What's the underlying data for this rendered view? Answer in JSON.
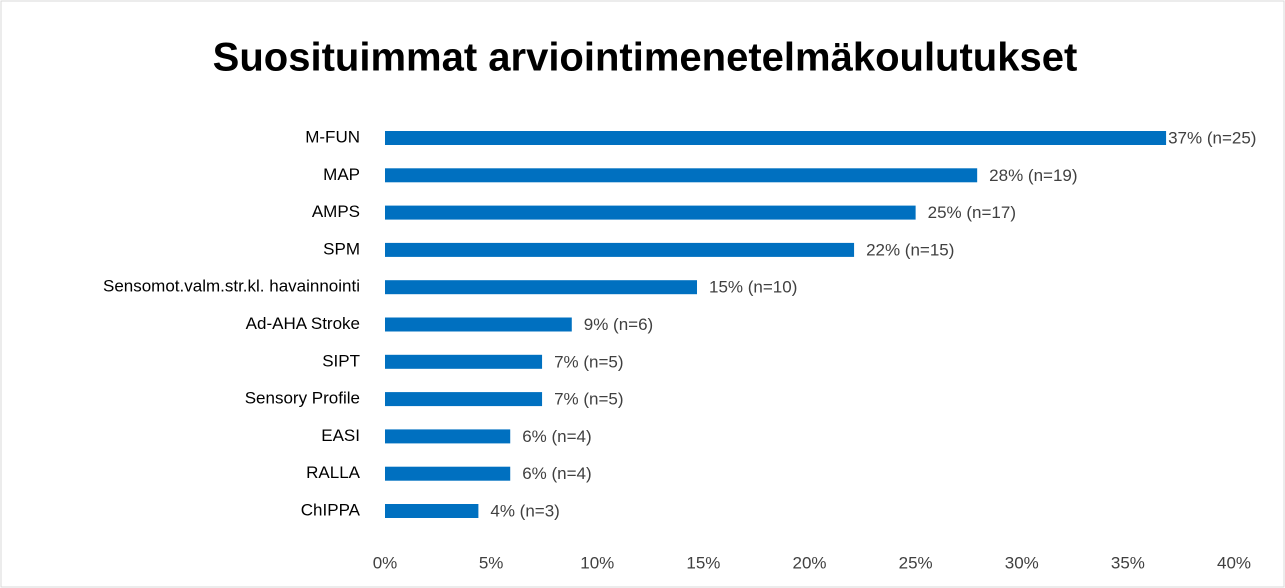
{
  "chart_data": {
    "type": "bar",
    "orientation": "horizontal",
    "title": "Suosituimmat arviointimenetelmäkoulutukset",
    "categories": [
      "M-FUN",
      "MAP",
      "AMPS",
      "SPM",
      "Sensomot.valm.str.kl. havainnointi",
      "Ad-AHA Stroke",
      "SIPT",
      "Sensory Profile",
      "EASI",
      "RALLA",
      "ChIPPA"
    ],
    "values": [
      36.8,
      27.9,
      25.0,
      22.1,
      14.7,
      8.8,
      7.4,
      7.4,
      5.9,
      5.9,
      4.4
    ],
    "value_labels": [
      "37% (n=25)",
      "28% (n=19)",
      "25% (n=17)",
      "22% (n=15)",
      "15% (n=10)",
      "9% (n=6)",
      "7% (n=5)",
      "7% (n=5)",
      "6% (n=4)",
      "6% (n=4)",
      "4% (n=3)"
    ],
    "color": "#0070c0",
    "xlim": [
      0,
      40
    ],
    "xticks": [
      {
        "value": 0,
        "label": "0%"
      },
      {
        "value": 5,
        "label": "5%"
      },
      {
        "value": 10,
        "label": "10%"
      },
      {
        "value": 15,
        "label": "15%"
      },
      {
        "value": 20,
        "label": "20%"
      },
      {
        "value": 25,
        "label": "25%"
      },
      {
        "value": 30,
        "label": "30%"
      },
      {
        "value": 35,
        "label": "35%"
      },
      {
        "value": 40,
        "label": "40%"
      }
    ],
    "grid": false
  }
}
